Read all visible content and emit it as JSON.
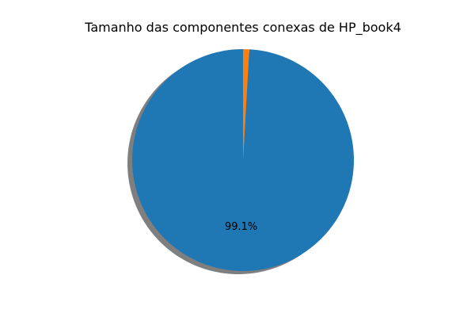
{
  "chart_data": {
    "type": "pie",
    "title": "Tamanho das componentes conexas de HP_book4",
    "slices": [
      {
        "value": 99.1,
        "label": "99.1%",
        "color": "#1f77b4",
        "show_label": true
      },
      {
        "value": 0.9,
        "label": "",
        "color": "#ff7f0e",
        "show_label": false
      }
    ],
    "start_angle_deg": 90,
    "counterclock": true,
    "shadow": true,
    "legend": "none"
  }
}
